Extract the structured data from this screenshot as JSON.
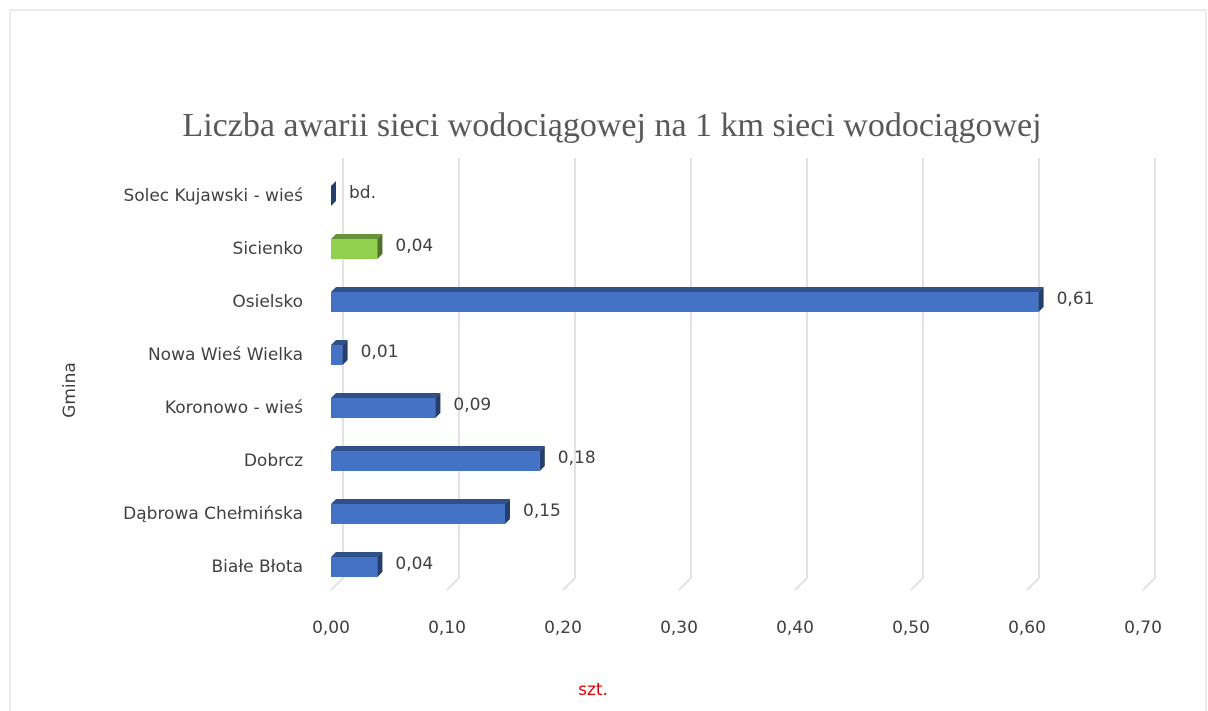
{
  "chart_data": {
    "type": "bar3d_horizontal",
    "title": "Liczba awarii sieci wodociągowej na 1 km sieci wodociągowej",
    "xlabel": "szt.",
    "ylabel": "Gmina",
    "categories": [
      "Białe Błota",
      "Dąbrowa Chełmińska",
      "Dobrcz",
      "Koronowo - wieś",
      "Nowa Wieś Wielka",
      "Osielsko",
      "Sicienko",
      "Solec Kujawski - wieś"
    ],
    "values": [
      0.04,
      0.15,
      0.18,
      0.09,
      0.01,
      0.61,
      0.04,
      null
    ],
    "value_labels": [
      "0,04",
      "0,15",
      "0,18",
      "0,09",
      "0,01",
      "0,61",
      "0,04",
      "bd."
    ],
    "colors": [
      "#4472c4",
      "#4472c4",
      "#4472c4",
      "#4472c4",
      "#4472c4",
      "#4472c4",
      "#92d050",
      "#4472c4"
    ],
    "xlim": [
      0,
      0.7
    ],
    "xticks": [
      {
        "value": 0,
        "label": "0,00"
      },
      {
        "value": 0.1,
        "label": "0,10"
      },
      {
        "value": 0.2,
        "label": "0,20"
      },
      {
        "value": 0.3,
        "label": "0,30"
      },
      {
        "value": 0.4,
        "label": "0,40"
      },
      {
        "value": 0.5,
        "label": "0,50"
      },
      {
        "value": 0.6,
        "label": "0,60"
      },
      {
        "value": 0.7,
        "label": "0,70"
      }
    ],
    "grid": true
  }
}
